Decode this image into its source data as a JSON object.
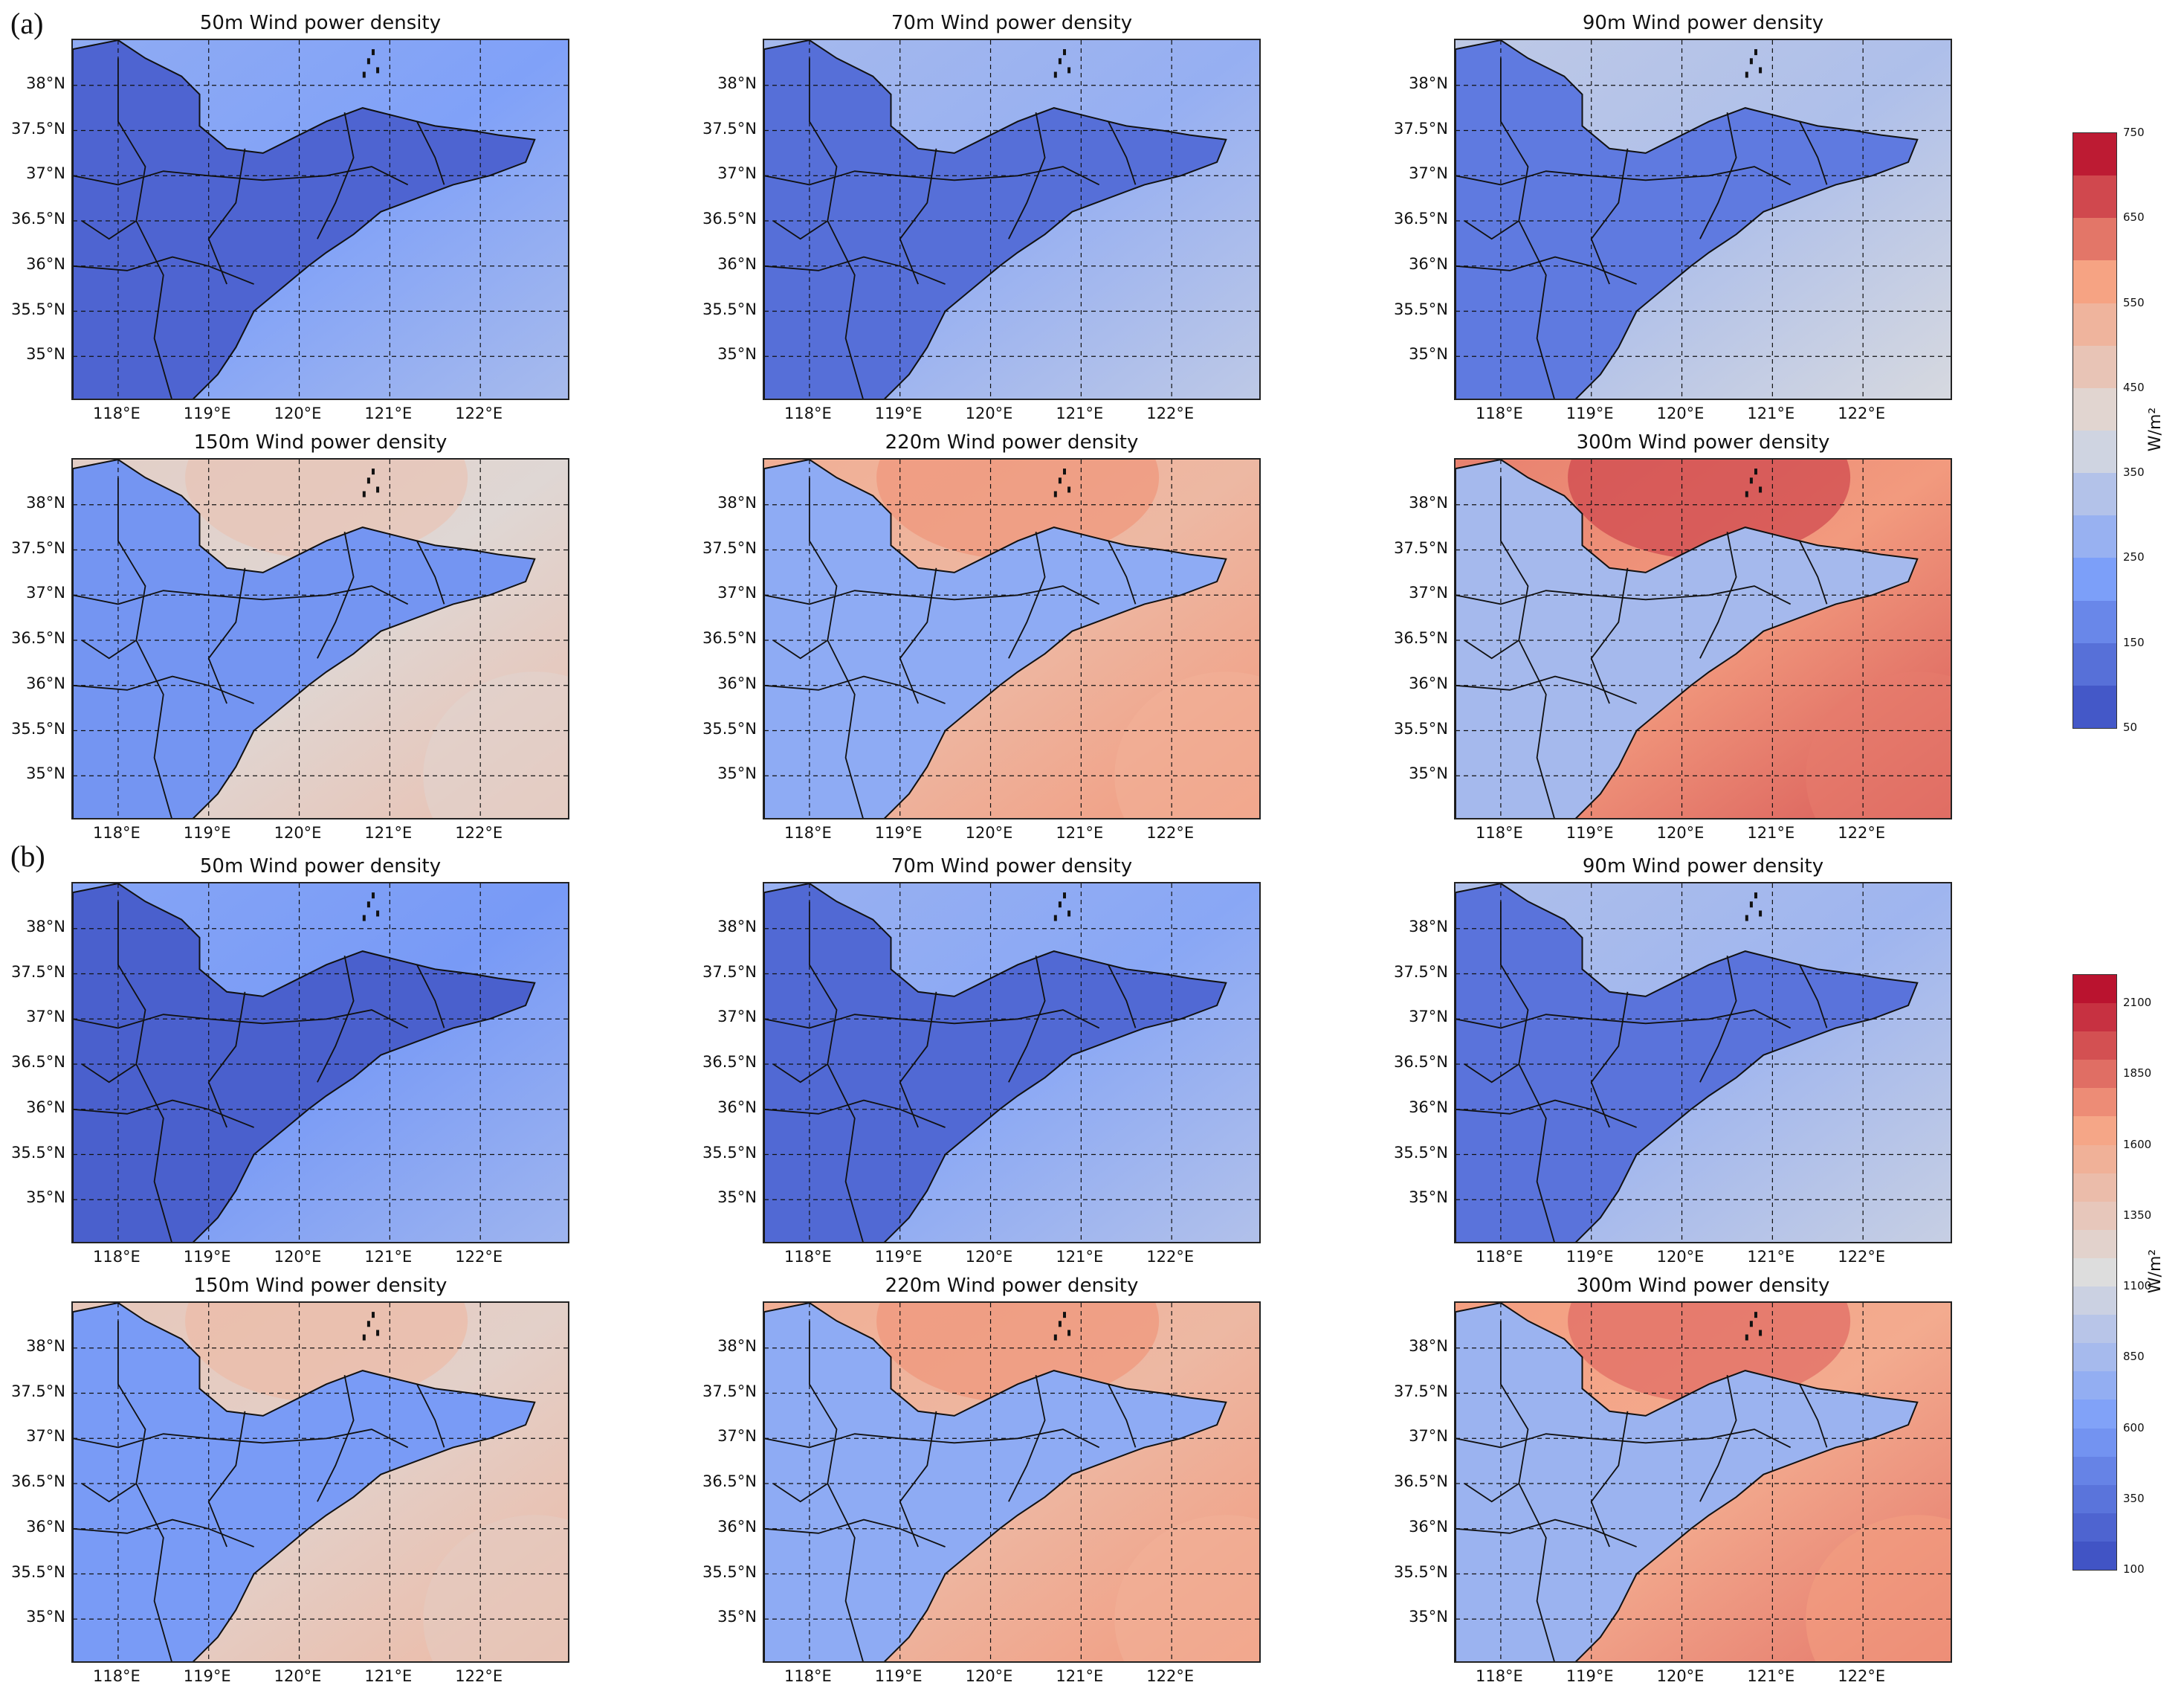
{
  "figure": {
    "panel_a_label": "(a)",
    "panel_b_label": "(b)",
    "lat_ticks": [
      "38°N",
      "37.5°N",
      "37°N",
      "36.5°N",
      "36°N",
      "35.5°N",
      "35°N"
    ],
    "lon_ticks": [
      "118°E",
      "119°E",
      "120°E",
      "121°E",
      "122°E"
    ],
    "unit": "W/m²"
  },
  "panels": [
    {
      "group": "a",
      "title": "50m Wind power density",
      "level": 0.05
    },
    {
      "group": "a",
      "title": "70m Wind power density",
      "level": 0.12
    },
    {
      "group": "a",
      "title": "90m Wind power density",
      "level": 0.2
    },
    {
      "group": "a",
      "title": "150m Wind power density",
      "level": 0.38
    },
    {
      "group": "a",
      "title": "220m Wind power density",
      "level": 0.55
    },
    {
      "group": "a",
      "title": "300m Wind power density",
      "level": 0.68
    },
    {
      "group": "b",
      "title": "50m Wind power density",
      "level": 0.02
    },
    {
      "group": "b",
      "title": "70m Wind power density",
      "level": 0.08
    },
    {
      "group": "b",
      "title": "90m Wind power density",
      "level": 0.15
    },
    {
      "group": "b",
      "title": "150m Wind power density",
      "level": 0.42
    },
    {
      "group": "b",
      "title": "220m Wind power density",
      "level": 0.55
    },
    {
      "group": "b",
      "title": "300m Wind power density",
      "level": 0.62
    }
  ],
  "colorbars": [
    {
      "group": "a",
      "ticks": [
        "750",
        "650",
        "550",
        "450",
        "350",
        "250",
        "150",
        "50"
      ],
      "range": [
        50,
        750
      ]
    },
    {
      "group": "b",
      "ticks": [
        "2100",
        "1850",
        "1600",
        "1350",
        "1100",
        "850",
        "600",
        "350",
        "100"
      ],
      "range": [
        100,
        2200
      ]
    }
  ],
  "colormap": "coolwarm"
}
